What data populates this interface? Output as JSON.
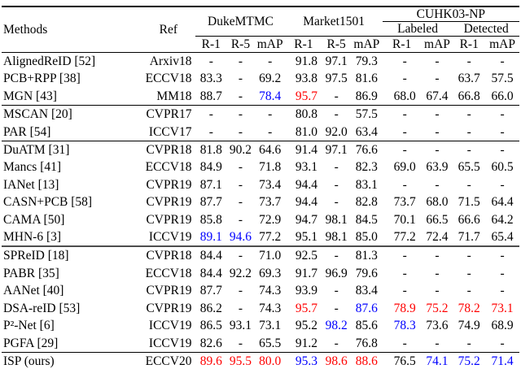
{
  "table": {
    "header": {
      "methods": "Methods",
      "ref": "Ref",
      "group_duke": "DukeMTMC",
      "group_market": "Market1501",
      "group_cuhk": "CUHK03-NP",
      "sub_labeled": "Labeled",
      "sub_detected": "Detected",
      "metrics": [
        "R-1",
        "R-5",
        "mAP",
        "R-1",
        "R-5",
        "mAP",
        "R-1",
        "mAP",
        "R-1",
        "mAP"
      ]
    },
    "colors": {
      "red": "#ff0000",
      "blue": "#0000ff",
      "text": "#000000"
    },
    "groups": [
      {
        "separator": "none",
        "rows": [
          {
            "method": "AlignedReID [52]",
            "ref": "Arxiv18",
            "values": [
              "-",
              "-",
              "-",
              "91.8",
              "97.1",
              "79.3",
              "-",
              "-",
              "-",
              "-"
            ],
            "highlights": {}
          },
          {
            "method": "PCB+RPP [38]",
            "ref": "ECCV18",
            "values": [
              "83.3",
              "-",
              "69.2",
              "93.8",
              "97.5",
              "81.6",
              "-",
              "-",
              "63.7",
              "57.5"
            ],
            "highlights": {}
          },
          {
            "method": "MGN [43]",
            "ref": "MM18",
            "values": [
              "88.7",
              "-",
              "78.4",
              "95.7",
              "-",
              "86.9",
              "68.0",
              "67.4",
              "66.8",
              "66.0"
            ],
            "highlights": {
              "2": "blue",
              "3": "red"
            }
          }
        ]
      },
      {
        "separator": "thin",
        "rows": [
          {
            "method": "MSCAN [20]",
            "ref": "CVPR17",
            "values": [
              "-",
              "-",
              "-",
              "80.8",
              "-",
              "57.5",
              "-",
              "-",
              "-",
              "-"
            ],
            "highlights": {}
          },
          {
            "method": "PAR [54]",
            "ref": "ICCV17",
            "values": [
              "-",
              "-",
              "-",
              "81.0",
              "92.0",
              "63.4",
              "-",
              "-",
              "-",
              "-"
            ],
            "highlights": {}
          }
        ]
      },
      {
        "separator": "thin",
        "rows": [
          {
            "method": "DuATM [31]",
            "ref": "CVPR18",
            "values": [
              "81.8",
              "90.2",
              "64.6",
              "91.4",
              "97.1",
              "76.6",
              "-",
              "-",
              "-",
              "-"
            ],
            "highlights": {}
          },
          {
            "method": "Mancs [41]",
            "ref": "ECCV18",
            "values": [
              "84.9",
              "-",
              "71.8",
              "93.1",
              "-",
              "82.3",
              "69.0",
              "63.9",
              "65.5",
              "60.5"
            ],
            "highlights": {}
          },
          {
            "method": "IANet [13]",
            "ref": "CVPR19",
            "values": [
              "87.1",
              "-",
              "73.4",
              "94.4",
              "-",
              "83.1",
              "-",
              "-",
              "-",
              "-"
            ],
            "highlights": {}
          },
          {
            "method": "CASN+PCB [58]",
            "ref": "CVPR19",
            "values": [
              "87.7",
              "-",
              "73.7",
              "94.4",
              "-",
              "82.8",
              "73.7",
              "68.0",
              "71.5",
              "64.4"
            ],
            "highlights": {}
          },
          {
            "method": "CAMA [50]",
            "ref": "CVPR19",
            "values": [
              "85.8",
              "-",
              "72.9",
              "94.7",
              "98.1",
              "84.5",
              "70.1",
              "66.5",
              "66.6",
              "64.2"
            ],
            "highlights": {}
          },
          {
            "method": "MHN-6 [3]",
            "ref": "ICCV19",
            "values": [
              "89.1",
              "94.6",
              "77.2",
              "95.1",
              "98.1",
              "85.0",
              "77.2",
              "72.4",
              "71.7",
              "65.4"
            ],
            "highlights": {
              "0": "blue",
              "1": "blue"
            }
          }
        ]
      },
      {
        "separator": "thick",
        "rows": [
          {
            "method": "SPReID [18]",
            "ref": "CVPR18",
            "values": [
              "84.4",
              "-",
              "71.0",
              "92.5",
              "-",
              "81.3",
              "-",
              "-",
              "-",
              "-"
            ],
            "highlights": {}
          },
          {
            "method": "PABR [35]",
            "ref": "ECCV18",
            "values": [
              "84.4",
              "92.2",
              "69.3",
              "91.7",
              "96.9",
              "79.6",
              "-",
              "-",
              "-",
              "-"
            ],
            "highlights": {}
          },
          {
            "method": "AANet [40]",
            "ref": "CVPR19",
            "values": [
              "87.7",
              "-",
              "74.3",
              "93.9",
              "-",
              "83.4",
              "-",
              "-",
              "-",
              "-"
            ],
            "highlights": {}
          },
          {
            "method": "DSA-reID [53]",
            "ref": "CVPR19",
            "values": [
              "86.2",
              "-",
              "74.3",
              "95.7",
              "-",
              "87.6",
              "78.9",
              "75.2",
              "78.2",
              "73.1"
            ],
            "highlights": {
              "3": "red",
              "5": "blue",
              "6": "red",
              "7": "red",
              "8": "red",
              "9": "red"
            }
          },
          {
            "method": "P²-Net [6]",
            "ref": "ICCV19",
            "values": [
              "86.5",
              "93.1",
              "73.1",
              "95.2",
              "98.2",
              "85.6",
              "78.3",
              "73.6",
              "74.9",
              "68.9"
            ],
            "highlights": {
              "4": "blue",
              "6": "blue"
            }
          },
          {
            "method": "PGFA [29]",
            "ref": "ICCV19",
            "values": [
              "82.6",
              "-",
              "65.5",
              "91.2",
              "-",
              "76.8",
              "-",
              "-",
              "-",
              "-"
            ],
            "highlights": {}
          }
        ]
      },
      {
        "separator": "thin",
        "rows": [
          {
            "method": "ISP (ours)",
            "ref": "ECCV20",
            "values": [
              "89.6",
              "95.5",
              "80.0",
              "95.3",
              "98.6",
              "88.6",
              "76.5",
              "74.1",
              "75.2",
              "71.4"
            ],
            "highlights": {
              "0": "red",
              "1": "red",
              "2": "red",
              "3": "blue",
              "4": "red",
              "5": "red",
              "7": "blue",
              "8": "blue",
              "9": "blue"
            }
          }
        ]
      }
    ]
  }
}
